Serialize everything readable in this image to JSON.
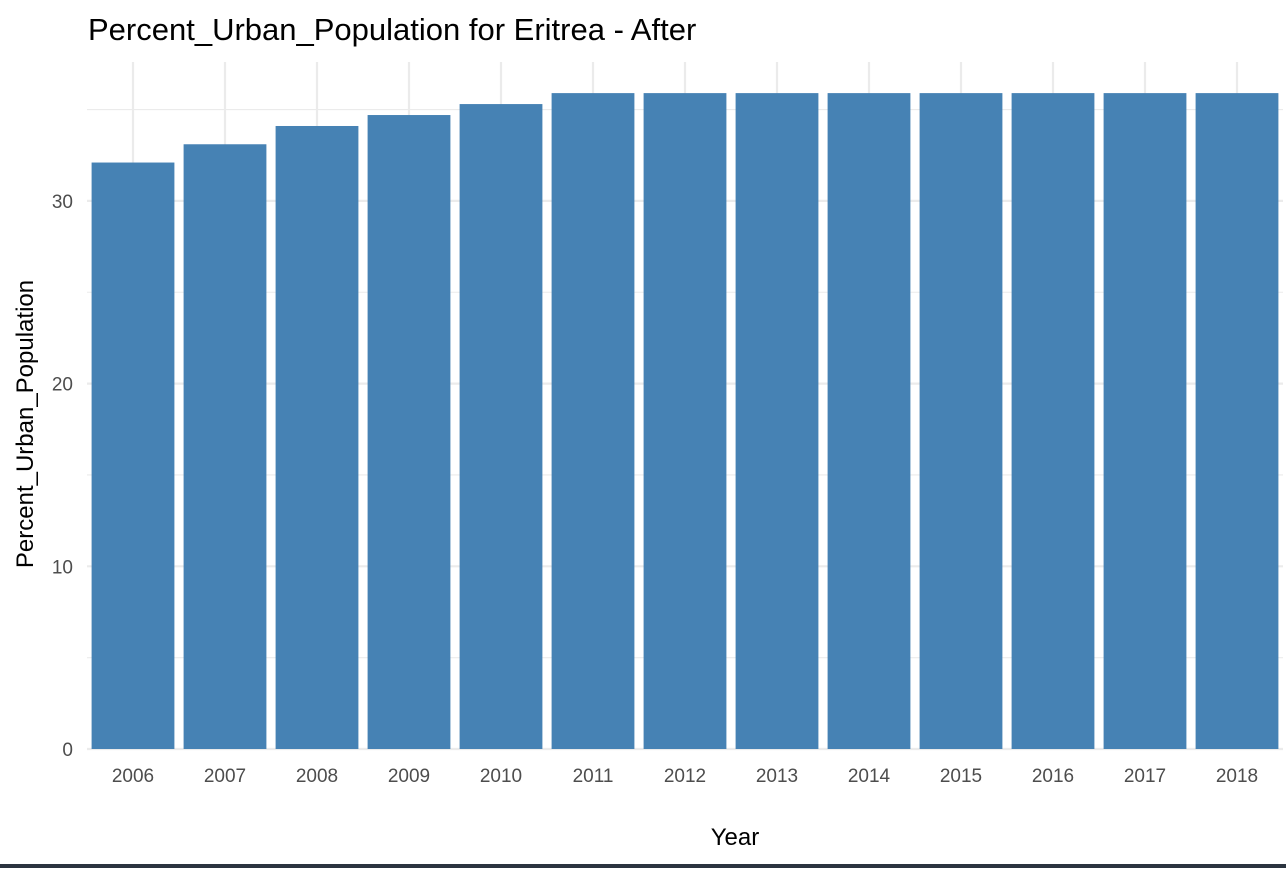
{
  "chart_data": {
    "type": "bar",
    "title": "Percent_Urban_Population for Eritrea - After",
    "xlabel": "Year",
    "ylabel": "Percent_Urban_Population",
    "categories": [
      "2006",
      "2007",
      "2008",
      "2009",
      "2010",
      "2011",
      "2012",
      "2013",
      "2014",
      "2015",
      "2016",
      "2017",
      "2018"
    ],
    "values": [
      32.1,
      33.1,
      34.1,
      34.7,
      35.3,
      35.9,
      35.9,
      35.9,
      35.9,
      35.9,
      35.9,
      35.9,
      35.9
    ],
    "ylim": [
      0,
      38
    ],
    "yticks": [
      0,
      10,
      20,
      30
    ],
    "bar_color": "#4682B4",
    "grid": true,
    "legend": "none"
  }
}
